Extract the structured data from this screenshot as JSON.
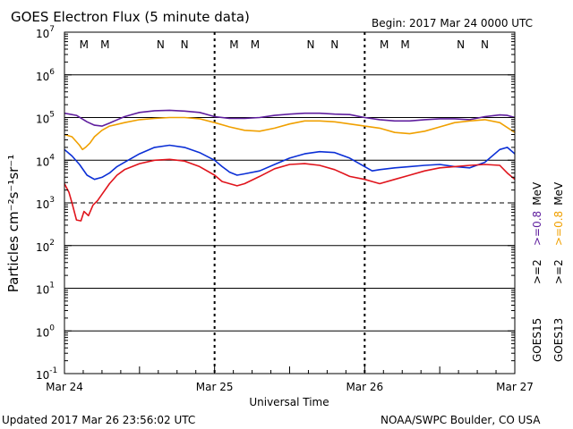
{
  "title": "GOES Electron Flux (5 minute data)",
  "begin_label": "Begin: 2017 Mar 24 0000 UTC",
  "footer_left": "Updated 2017 Mar 26 23:56:02 UTC",
  "footer_right": "NOAA/SWPC Boulder, CO USA",
  "colors": {
    "goes15_high": "#5f1e9e",
    "goes13_high": "#f0a000",
    "goes15_low": "#0b2fd6",
    "goes13_low": "#e0141c",
    "marker_M": "#e0141c",
    "marker_N": "#0b2fd6"
  },
  "chart_data": {
    "type": "line",
    "title": "GOES Electron Flux (5 minute data)",
    "xlabel": "Universal Time",
    "ylabel": "Particles cm⁻²s⁻¹sr⁻¹",
    "x_unit": "days since 2017 Mar 24 0000 UTC",
    "xlim": [
      0,
      3
    ],
    "x_ticks": [
      {
        "x": 0,
        "label": "Mar 24"
      },
      {
        "x": 1,
        "label": "Mar 25"
      },
      {
        "x": 2,
        "label": "Mar 26"
      },
      {
        "x": 3,
        "label": "Mar 27"
      }
    ],
    "y_scale": "log",
    "ylim_exponent": [
      -1,
      7
    ],
    "y_tick_labels": [
      {
        "exp": 7,
        "base": "10",
        "sup": "7"
      },
      {
        "exp": 6,
        "base": "10",
        "sup": "6"
      },
      {
        "exp": 5,
        "base": "10",
        "sup": "5"
      },
      {
        "exp": 4,
        "base": "10",
        "sup": "4"
      },
      {
        "exp": 3,
        "base": "10",
        "sup": "3"
      },
      {
        "exp": 2,
        "base": "10",
        "sup": "2"
      },
      {
        "exp": 1,
        "base": "10",
        "sup": "1"
      },
      {
        "exp": 0,
        "base": "10",
        "sup": "0"
      },
      {
        "exp": -1,
        "base": "10",
        "sup": "-1"
      }
    ],
    "gridlines_solid_exp": [
      6,
      5,
      4,
      2,
      1,
      0
    ],
    "gridlines_dashed_exp": [
      3
    ],
    "markers": [
      {
        "x": 0.13,
        "label": "M",
        "color": "marker_M"
      },
      {
        "x": 0.27,
        "label": "M",
        "color": "marker_N"
      },
      {
        "x": 0.64,
        "label": "N",
        "color": "marker_M"
      },
      {
        "x": 0.8,
        "label": "N",
        "color": "marker_N"
      },
      {
        "x": 1.13,
        "label": "M",
        "color": "marker_M"
      },
      {
        "x": 1.27,
        "label": "M",
        "color": "marker_N"
      },
      {
        "x": 1.64,
        "label": "N",
        "color": "marker_M"
      },
      {
        "x": 1.8,
        "label": "N",
        "color": "marker_N"
      },
      {
        "x": 2.13,
        "label": "M",
        "color": "marker_M"
      },
      {
        "x": 2.27,
        "label": "M",
        "color": "marker_N"
      },
      {
        "x": 2.64,
        "label": "N",
        "color": "marker_M"
      },
      {
        "x": 2.8,
        "label": "N",
        "color": "marker_N"
      }
    ],
    "legend": {
      "placement": "right",
      "high_energy": {
        "label_15": ">=0.8",
        "label_13": ">=0.8",
        "unit": "MeV"
      },
      "low_energy": {
        "label_15": ">=2",
        "label_13": ">=2"
      },
      "sat_15": "GOES15",
      "sat_13": "GOES13"
    },
    "series": [
      {
        "name": "GOES15 >=0.8 MeV",
        "color_key": "goes15_high",
        "x": [
          0,
          0.08,
          0.15,
          0.2,
          0.25,
          0.3,
          0.4,
          0.5,
          0.6,
          0.7,
          0.8,
          0.9,
          1.0,
          1.1,
          1.2,
          1.3,
          1.4,
          1.5,
          1.6,
          1.7,
          1.8,
          1.9,
          2.0,
          2.1,
          2.2,
          2.3,
          2.4,
          2.5,
          2.6,
          2.7,
          2.8,
          2.9,
          2.95,
          3.0
        ],
        "logy": [
          5.1,
          5.05,
          4.9,
          4.82,
          4.8,
          4.87,
          5.02,
          5.12,
          5.16,
          5.17,
          5.15,
          5.12,
          5.02,
          4.98,
          4.98,
          5.0,
          5.05,
          5.08,
          5.1,
          5.1,
          5.08,
          5.07,
          5.0,
          4.95,
          4.92,
          4.92,
          4.95,
          4.97,
          4.97,
          4.95,
          5.02,
          5.06,
          5.05,
          5.0
        ]
      },
      {
        "name": "GOES13 >=0.8 MeV",
        "color_key": "goes13_high",
        "x": [
          0,
          0.05,
          0.1,
          0.12,
          0.14,
          0.17,
          0.2,
          0.25,
          0.3,
          0.4,
          0.5,
          0.6,
          0.7,
          0.8,
          0.9,
          1.0,
          1.1,
          1.2,
          1.3,
          1.4,
          1.5,
          1.6,
          1.7,
          1.8,
          1.9,
          2.0,
          2.1,
          2.2,
          2.3,
          2.4,
          2.5,
          2.6,
          2.7,
          2.8,
          2.9,
          3.0
        ],
        "logy": [
          4.6,
          4.55,
          4.35,
          4.25,
          4.3,
          4.4,
          4.55,
          4.7,
          4.8,
          4.88,
          4.95,
          4.98,
          5.0,
          5.0,
          4.97,
          4.88,
          4.78,
          4.7,
          4.68,
          4.75,
          4.85,
          4.92,
          4.92,
          4.9,
          4.85,
          4.8,
          4.75,
          4.65,
          4.62,
          4.68,
          4.78,
          4.88,
          4.92,
          4.95,
          4.88,
          4.65
        ]
      },
      {
        "name": "GOES15 >=2 MeV",
        "color_key": "goes15_low",
        "x": [
          0,
          0.05,
          0.1,
          0.15,
          0.2,
          0.25,
          0.3,
          0.35,
          0.4,
          0.5,
          0.6,
          0.7,
          0.8,
          0.9,
          1.0,
          1.05,
          1.1,
          1.15,
          1.2,
          1.3,
          1.4,
          1.5,
          1.6,
          1.7,
          1.8,
          1.9,
          2.0,
          2.05,
          2.1,
          2.2,
          2.3,
          2.4,
          2.5,
          2.6,
          2.7,
          2.8,
          2.9,
          2.95,
          3.0
        ],
        "logy": [
          4.25,
          4.1,
          3.9,
          3.65,
          3.55,
          3.6,
          3.7,
          3.85,
          3.95,
          4.15,
          4.3,
          4.35,
          4.3,
          4.18,
          4.0,
          3.85,
          3.72,
          3.65,
          3.68,
          3.75,
          3.9,
          4.05,
          4.15,
          4.2,
          4.18,
          4.05,
          3.85,
          3.75,
          3.78,
          3.82,
          3.85,
          3.88,
          3.9,
          3.85,
          3.82,
          3.95,
          4.25,
          4.3,
          4.15
        ]
      },
      {
        "name": "GOES13 >=2 MeV",
        "color_key": "goes13_low",
        "x": [
          0,
          0.03,
          0.05,
          0.08,
          0.11,
          0.13,
          0.16,
          0.19,
          0.22,
          0.25,
          0.3,
          0.35,
          0.4,
          0.5,
          0.6,
          0.7,
          0.8,
          0.9,
          1.0,
          1.05,
          1.1,
          1.15,
          1.2,
          1.3,
          1.4,
          1.5,
          1.6,
          1.7,
          1.8,
          1.9,
          2.0,
          2.05,
          2.1,
          2.2,
          2.3,
          2.4,
          2.5,
          2.6,
          2.7,
          2.8,
          2.9,
          2.95,
          3.0
        ],
        "logy": [
          3.45,
          3.25,
          3.0,
          2.6,
          2.58,
          2.8,
          2.7,
          2.95,
          3.05,
          3.2,
          3.45,
          3.65,
          3.78,
          3.92,
          4.0,
          4.02,
          3.98,
          3.85,
          3.65,
          3.5,
          3.45,
          3.4,
          3.45,
          3.62,
          3.8,
          3.9,
          3.92,
          3.88,
          3.78,
          3.62,
          3.55,
          3.5,
          3.45,
          3.55,
          3.65,
          3.75,
          3.82,
          3.85,
          3.88,
          3.9,
          3.88,
          3.7,
          3.55
        ]
      }
    ]
  }
}
